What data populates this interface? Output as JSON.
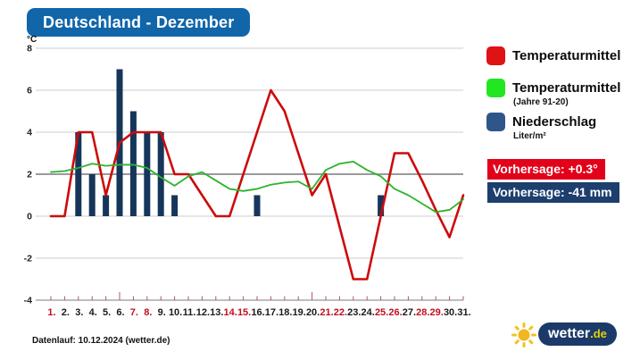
{
  "header": {
    "title": "Deutschland - Dezember"
  },
  "legend": {
    "items": [
      {
        "label": "Temperaturmittel",
        "sublabel": "",
        "color": "#df1216"
      },
      {
        "label": "Temperaturmittel",
        "sublabel": "(Jahre 91-20)",
        "color": "#23e623"
      },
      {
        "label": "Niederschlag",
        "sublabel": "Liter/m²",
        "color": "#2f568b"
      }
    ],
    "forecast_temperature": {
      "label": "Vorhersage: +0.3°",
      "bg": "#e2001a"
    },
    "forecast_precipitation": {
      "label": "Vorhersage: -41 mm",
      "bg": "#1d3f6e"
    }
  },
  "footer": {
    "datarun": "Datenlauf: 10.12.2024 (wetter.de)"
  },
  "logo": {
    "text": "wetter",
    "tld": ".de"
  },
  "chart_data": {
    "type": "mixed bar+line",
    "title": "Deutschland - Dezember",
    "ylabel": "°C",
    "ylim": [
      -4,
      8
    ],
    "yticks": [
      8,
      6,
      4,
      2,
      0,
      -2,
      -4
    ],
    "y_tick_labels": [
      "8",
      "6",
      "4",
      "2",
      "0",
      "-2",
      "-4"
    ],
    "emphasized_gridline": 2,
    "grid": true,
    "legend_position": "right",
    "x": [
      1,
      2,
      3,
      4,
      5,
      6,
      7,
      8,
      9,
      10,
      11,
      12,
      13,
      14,
      15,
      16,
      17,
      18,
      19,
      20,
      21,
      22,
      23,
      24,
      25,
      26,
      27,
      28,
      29,
      30,
      31
    ],
    "x_tick_labels": [
      "1.",
      "2.",
      "3.",
      "4.",
      "5.",
      "6.",
      "7.",
      "8.",
      "9.",
      "10.",
      "11.",
      "12.",
      "13.",
      "14.",
      "15.",
      "16.",
      "17.",
      "18.",
      "19.",
      "20.",
      "21.",
      "22.",
      "23.",
      "24.",
      "25.",
      "26.",
      "27.",
      "28.",
      "29.",
      "30.",
      "31."
    ],
    "highlighted_red_days": [
      1,
      7,
      8,
      14,
      15,
      21,
      22,
      25,
      26,
      28,
      29
    ],
    "major_tick_days": [
      6,
      20
    ],
    "series": [
      {
        "name": "Temperaturmittel",
        "type": "line",
        "color": "#cc0b0b",
        "values": [
          0,
          0,
          4,
          4,
          1,
          3.5,
          4,
          4,
          4,
          2,
          2,
          1,
          0,
          0,
          2,
          4,
          6,
          5,
          3,
          1,
          2,
          -0.5,
          -3,
          -3,
          0,
          3,
          3,
          1.7,
          0.3,
          -1,
          1
        ]
      },
      {
        "name": "Temperaturmittel (Jahre 91-20)",
        "type": "line",
        "color": "#2db32d",
        "values": [
          2.1,
          2.15,
          2.3,
          2.5,
          2.4,
          2.45,
          2.45,
          2.3,
          1.85,
          1.45,
          1.9,
          2.1,
          1.7,
          1.3,
          1.2,
          1.3,
          1.5,
          1.6,
          1.65,
          1.3,
          2.2,
          2.5,
          2.6,
          2.2,
          1.9,
          1.3,
          1.0,
          0.6,
          0.2,
          0.3,
          0.8
        ]
      },
      {
        "name": "Niederschlag (Liter/m²)",
        "type": "bar",
        "color": "#16355b",
        "values": [
          0,
          0,
          4,
          2,
          1,
          7,
          5,
          4,
          4,
          1,
          0,
          0,
          0,
          0,
          0,
          1,
          0,
          0,
          0,
          0,
          0,
          0,
          0,
          0,
          1,
          0,
          0,
          0,
          0,
          0,
          0
        ]
      }
    ],
    "annotations": [
      "Vorhersage: +0.3°",
      "Vorhersage: -41 mm"
    ]
  }
}
